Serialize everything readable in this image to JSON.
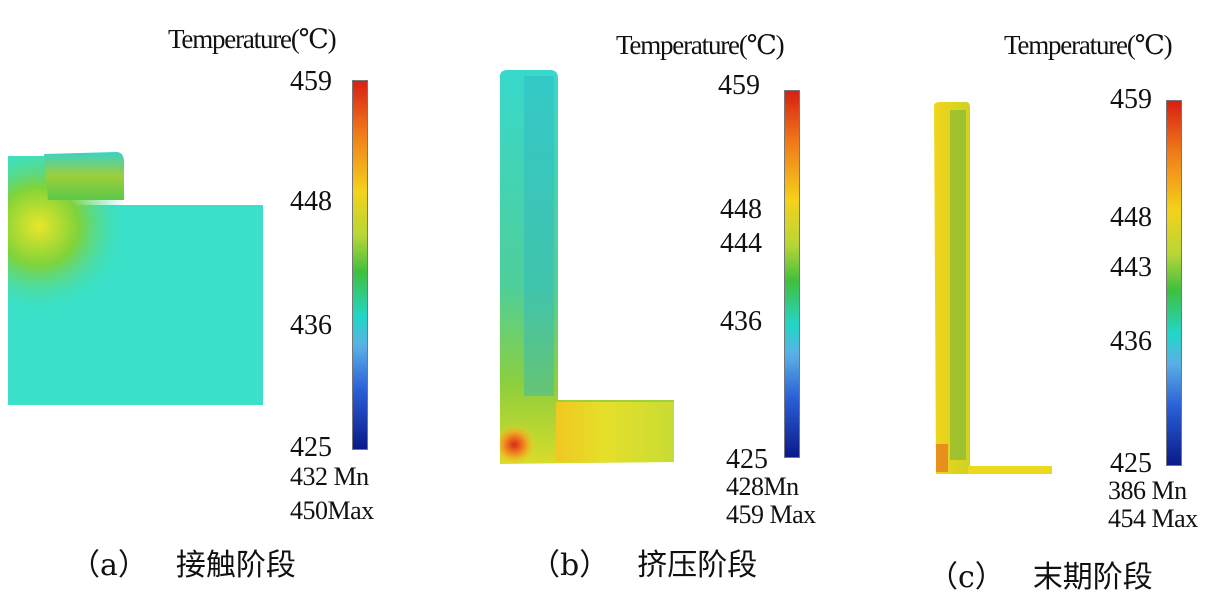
{
  "unit_title": "Temperature(℃)",
  "panels": [
    {
      "caption_id": "（a）",
      "caption_text": "接触阶段",
      "ticks": [
        "459",
        "448",
        "436",
        "425"
      ],
      "min_value": "432",
      "min_label": "Mn",
      "max_value": "450",
      "max_label": "Max"
    },
    {
      "caption_id": "（b）",
      "caption_text": "挤压阶段",
      "ticks": [
        "459",
        "448",
        "444",
        "436",
        "425"
      ],
      "min_value": "428",
      "min_label": "Mn",
      "max_value": "459",
      "max_label": "Max"
    },
    {
      "caption_id": "（c）",
      "caption_text": "末期阶段",
      "ticks": [
        "459",
        "448",
        "443",
        "436",
        "425"
      ],
      "min_value": "386",
      "min_label": "Mn",
      "max_value": "454",
      "max_label": "Max"
    }
  ],
  "colors": {
    "cold": "#0a1a8a",
    "cyan": "#22d6c8",
    "green": "#3fbf3f",
    "yellow": "#f4d21a",
    "hot": "#d71f12"
  }
}
